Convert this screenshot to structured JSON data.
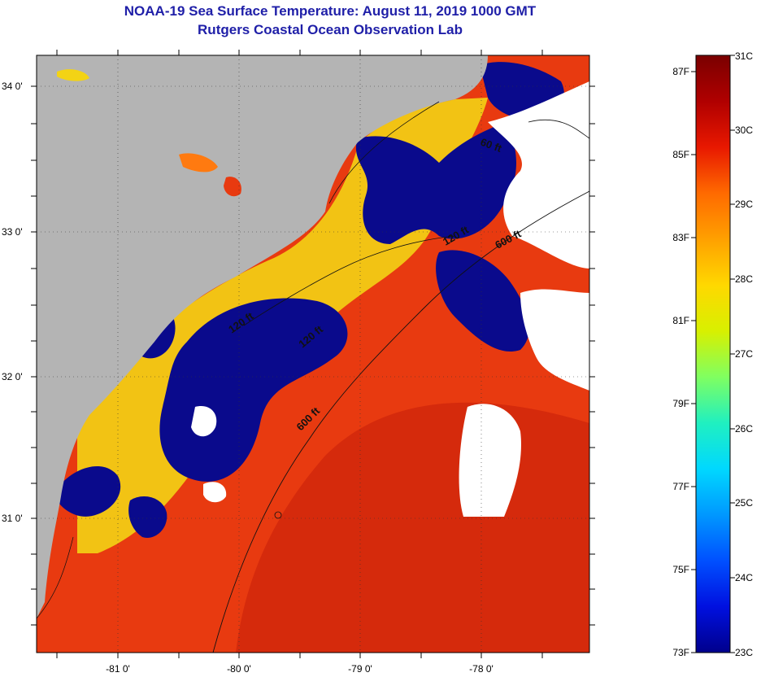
{
  "header": {
    "title": "NOAA-19 Sea Surface Temperature:  August 11, 2019 1000 GMT",
    "subtitle": "Rutgers Coastal Ocean Observation Lab"
  },
  "map": {
    "lat_labels": [
      "34 0'",
      "33 0'",
      "32 0'",
      "31 0'"
    ],
    "lon_labels": [
      "-81 0'",
      "-80 0'",
      "-79 0'",
      "-78 0'"
    ],
    "isobath_labels": [
      "60 ft",
      "120 ft",
      "600 ft",
      "120 ft",
      "120 ft",
      "600 ft"
    ],
    "colors": {
      "land": "#b4b4b4",
      "cloud": "#ffffff",
      "cold": "#0a0a8c",
      "warm": "#e83a10",
      "hot": "#c41e0a",
      "shelf": "#f3d315"
    }
  },
  "colorbar": {
    "fahrenheit_labels": [
      "87F",
      "85F",
      "83F",
      "81F",
      "79F",
      "77F",
      "75F",
      "73F"
    ],
    "celsius_labels": [
      "31C",
      "30C",
      "29C",
      "28C",
      "27C",
      "26C",
      "25C",
      "24C",
      "23C"
    ],
    "gradient": [
      "#7a0000",
      "#b00000",
      "#e81800",
      "#ff6a00",
      "#ffa000",
      "#ffd800",
      "#d8f000",
      "#80ff60",
      "#20f0c0",
      "#00d8ff",
      "#0098ff",
      "#0050ff",
      "#0010e0",
      "#00008c"
    ]
  }
}
